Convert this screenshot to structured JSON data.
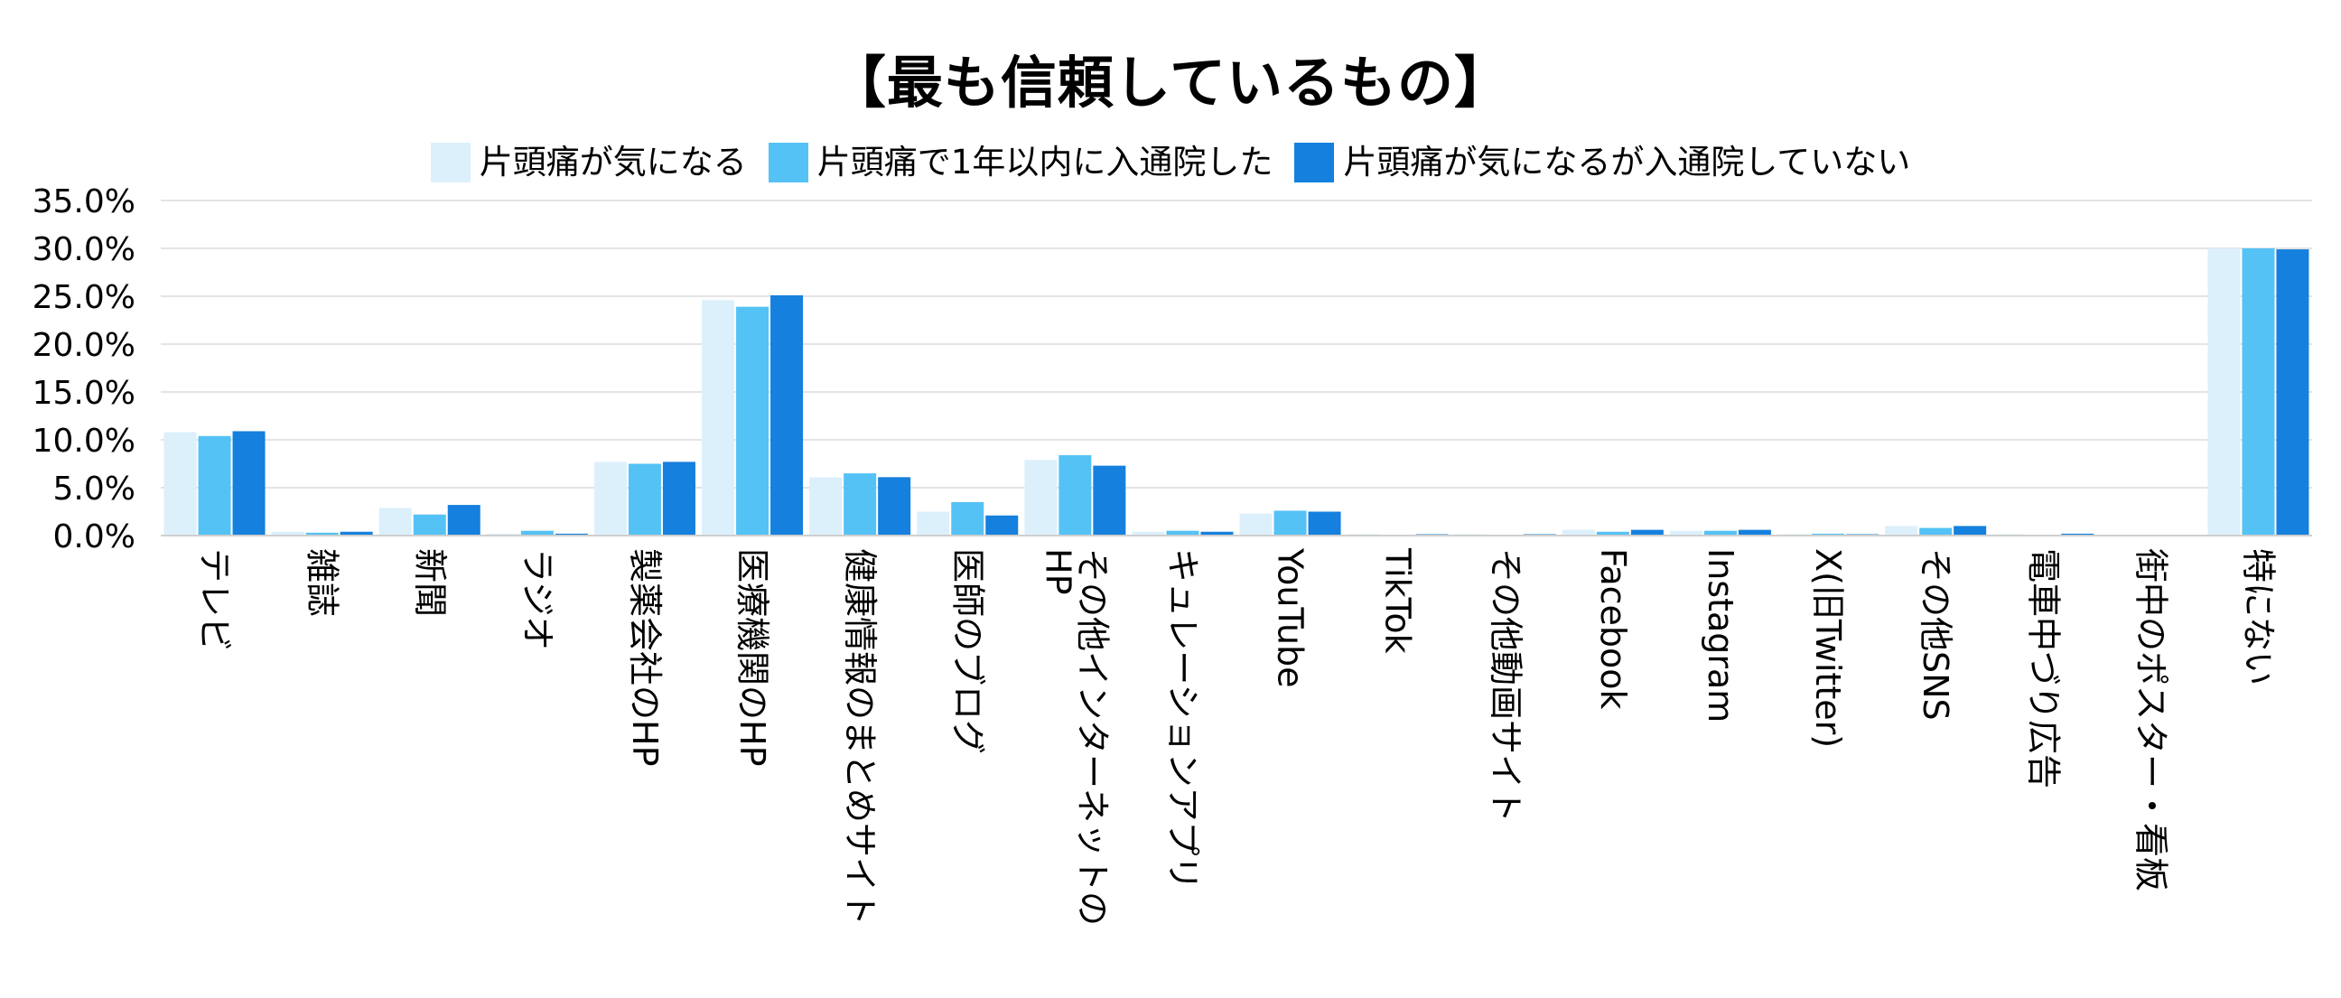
{
  "chart_data": {
    "type": "bar",
    "title": "【最も信頼しているもの】",
    "xlabel": "",
    "ylabel": "",
    "ylim": [
      0,
      35
    ],
    "yticks": [
      "35.0%",
      "30.0%",
      "25.0%",
      "20.0%",
      "15.0%",
      "10.0%",
      "5.0%",
      "0.0%"
    ],
    "ytick_values": [
      35,
      30,
      25,
      20,
      15,
      10,
      5,
      0
    ],
    "grid": true,
    "legend_position": "top",
    "categories": [
      "テレビ",
      "雑誌",
      "新聞",
      "ラジオ",
      "製薬会社のHP",
      "医療機関のHP",
      "健康情報のまとめサイト",
      "医師のブログ",
      "その他インターネットのHP",
      "キュレーションアプリ",
      "YouTube",
      "TikTok",
      "その他動画サイト",
      "Facebook",
      "Instagram",
      "X(旧Twitter)",
      "その他SNS",
      "電車中づり広告",
      "街中のポスター・看板",
      "特にない"
    ],
    "category_lines": [
      [
        "テレビ"
      ],
      [
        "雑誌"
      ],
      [
        "新聞"
      ],
      [
        "ラジオ"
      ],
      [
        "製薬会社のHP"
      ],
      [
        "医療機関のHP"
      ],
      [
        "健康情報のまとめサイト"
      ],
      [
        "医師のブログ"
      ],
      [
        "その他インターネットの",
        "HP"
      ],
      [
        "キュレーションアプリ"
      ],
      [
        "YouTube"
      ],
      [
        "TikTok"
      ],
      [
        "その他動画サイト"
      ],
      [
        "Facebook"
      ],
      [
        "Instagram"
      ],
      [
        "X(旧Twitter)"
      ],
      [
        "その他SNS"
      ],
      [
        "電車中づり広告"
      ],
      [
        "街中のポスター・看板"
      ],
      [
        "特にない"
      ]
    ],
    "series": [
      {
        "name": "片頭痛が気になる",
        "color": "#dcf0fc",
        "values": [
          10.8,
          0.4,
          2.9,
          0.2,
          7.7,
          24.6,
          6.1,
          2.5,
          7.9,
          0.4,
          2.3,
          0.1,
          0.1,
          0.6,
          0.5,
          0.1,
          1.0,
          0.1,
          0.0,
          30.0
        ]
      },
      {
        "name": "片頭痛で1年以内に入通院した",
        "color": "#55c2f5",
        "values": [
          10.4,
          0.3,
          2.2,
          0.5,
          7.5,
          23.9,
          6.5,
          3.5,
          8.4,
          0.5,
          2.6,
          0.0,
          0.0,
          0.4,
          0.5,
          0.2,
          0.8,
          0.0,
          0.0,
          30.0
        ]
      },
      {
        "name": "片頭痛が気になるが入通院していない",
        "color": "#1580dd",
        "values": [
          10.9,
          0.4,
          3.2,
          0.2,
          7.7,
          25.1,
          6.1,
          2.1,
          7.3,
          0.4,
          2.5,
          0.1,
          0.1,
          0.6,
          0.6,
          0.1,
          1.0,
          0.2,
          0.0,
          29.9
        ]
      }
    ]
  }
}
